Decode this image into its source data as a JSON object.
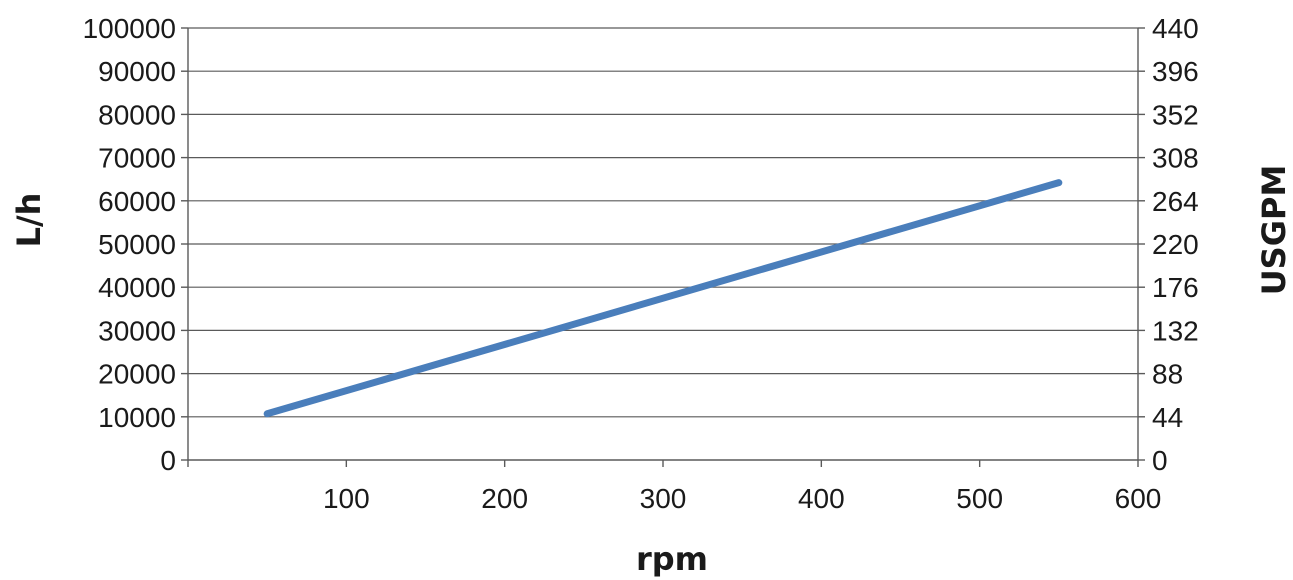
{
  "chart_data": {
    "type": "line",
    "xlabel": "rpm",
    "ylabel": "L/h",
    "y2label": "USGPM",
    "xlim": [
      0,
      600
    ],
    "ylim": [
      0,
      100000
    ],
    "y2lim": [
      0,
      440
    ],
    "x_ticks": [
      "100",
      "200",
      "300",
      "400",
      "500",
      "600"
    ],
    "y_ticks": [
      "0",
      "10000",
      "20000",
      "30000",
      "40000",
      "50000",
      "60000",
      "70000",
      "80000",
      "90000",
      "100000"
    ],
    "y2_ticks": [
      "0",
      "44",
      "88",
      "132",
      "176",
      "220",
      "264",
      "308",
      "352",
      "396",
      "440"
    ],
    "grid": true,
    "series": [
      {
        "color": "#4a7ebb",
        "x": [
          50,
          550
        ],
        "y": [
          10700,
          64200
        ]
      }
    ]
  }
}
